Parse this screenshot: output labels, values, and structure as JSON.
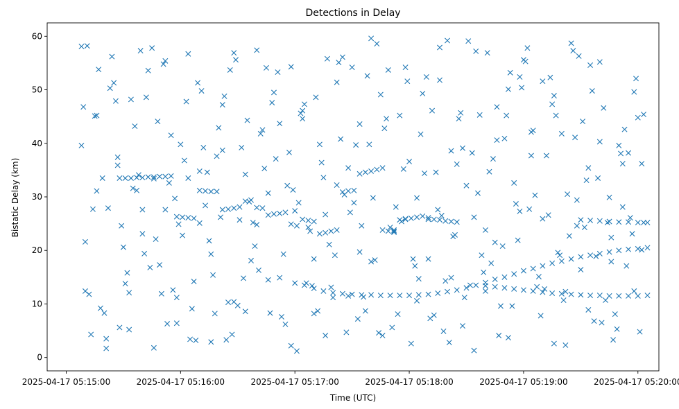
{
  "chart_data": {
    "type": "scatter",
    "title": "Detections in Delay",
    "xlabel": "Time (UTC)",
    "ylabel": "Bistatic Delay (km)",
    "marker": "x",
    "grid": false,
    "legend": "none",
    "color": "#1f77b4",
    "x_ticks": [
      "2025-04-17 05:15:00",
      "2025-04-17 05:16:00",
      "2025-04-17 05:17:00",
      "2025-04-17 05:18:00",
      "2025-04-17 05:19:00",
      "2025-04-17 05:20:00"
    ],
    "y_ticks": [
      0,
      10,
      20,
      30,
      40,
      50,
      60
    ],
    "xlim": [
      "2025-04-17 05:14:50",
      "2025-04-17 05:20:11"
    ],
    "ylim": [
      -2.5,
      62.5
    ],
    "series": [
      {
        "values_note": "(x, y) pairs: x = time HH:MM:SS (UTC), y = bistatic delay (km)",
        "x": [
          "05:15:08",
          "05:15:10",
          "05:15:13",
          "05:15:16",
          "05:15:19",
          "05:15:22",
          "05:15:25",
          "05:15:28",
          "05:15:31",
          "05:15:34",
          "05:15:37",
          "05:15:40",
          "05:15:43",
          "05:15:46",
          "05:15:49",
          "05:15:52",
          "05:15:55",
          "05:15:58",
          "05:16:01",
          "05:16:04",
          "05:16:07",
          "05:16:10",
          "05:16:13",
          "05:16:16",
          "05:16:19",
          "05:16:22",
          "05:16:25",
          "05:16:28",
          "05:16:31",
          "05:16:34",
          "05:16:37",
          "05:16:40",
          "05:16:43",
          "05:16:46",
          "05:16:49",
          "05:16:52",
          "05:16:55",
          "05:16:58",
          "05:17:01",
          "05:17:04",
          "05:17:07",
          "05:17:10",
          "05:17:13",
          "05:17:16",
          "05:17:19",
          "05:17:22",
          "05:17:25",
          "05:17:28",
          "05:17:31",
          "05:17:34",
          "05:17:37",
          "05:17:40",
          "05:17:43",
          "05:17:46",
          "05:17:49",
          "05:17:52",
          "05:17:55",
          "05:17:58",
          "05:18:01",
          "05:18:04",
          "05:18:07",
          "05:18:10",
          "05:18:13",
          "05:18:16",
          "05:18:19",
          "05:18:22",
          "05:18:25",
          "05:18:28",
          "05:18:31",
          "05:18:34",
          "05:18:37",
          "05:18:40",
          "05:18:43",
          "05:18:46",
          "05:18:49",
          "05:18:52",
          "05:18:55",
          "05:18:58",
          "05:19:01",
          "05:19:04",
          "05:19:07",
          "05:19:10",
          "05:19:13",
          "05:19:16",
          "05:19:19",
          "05:19:22",
          "05:19:25",
          "05:19:28",
          "05:19:31",
          "05:19:34",
          "05:19:37",
          "05:19:40",
          "05:19:43",
          "05:19:46",
          "05:19:49",
          "05:19:52",
          "05:19:55",
          "05:19:58",
          "05:20:01",
          "05:20:03",
          "05:15:08",
          "05:15:12",
          "05:15:17",
          "05:15:21",
          "05:15:26",
          "05:15:30",
          "05:15:35",
          "05:15:39",
          "05:15:44",
          "05:15:48",
          "05:15:53",
          "05:15:57",
          "05:16:02",
          "05:16:06",
          "05:16:11",
          "05:16:15",
          "05:16:20",
          "05:16:24",
          "05:16:29",
          "05:16:33",
          "05:16:38",
          "05:16:42",
          "05:16:47",
          "05:16:51",
          "05:16:56",
          "05:17:00",
          "05:17:05",
          "05:17:09",
          "05:17:14",
          "05:17:18",
          "05:17:23",
          "05:17:27",
          "05:17:32",
          "05:17:36",
          "05:17:41",
          "05:17:45",
          "05:17:50",
          "05:17:54",
          "05:17:59",
          "05:18:03",
          "05:18:08",
          "05:18:12",
          "05:18:17",
          "05:18:21",
          "05:18:26",
          "05:18:30",
          "05:18:35",
          "05:18:39",
          "05:18:44",
          "05:18:48",
          "05:18:53",
          "05:18:57",
          "05:19:02",
          "05:19:06",
          "05:19:11",
          "05:19:15",
          "05:19:20",
          "05:19:24",
          "05:19:29",
          "05:19:33",
          "05:19:38",
          "05:19:42",
          "05:19:47",
          "05:19:51",
          "05:19:56",
          "05:20:00",
          "05:15:09",
          "05:15:14",
          "05:15:18",
          "05:15:23",
          "05:15:27",
          "05:15:32",
          "05:15:36",
          "05:15:41",
          "05:15:45",
          "05:15:50",
          "05:15:54",
          "05:15:59",
          "05:16:03",
          "05:16:08",
          "05:16:12",
          "05:16:17",
          "05:16:21",
          "05:16:26",
          "05:16:30",
          "05:16:35",
          "05:16:39",
          "05:16:44",
          "05:16:48",
          "05:16:53",
          "05:16:57",
          "05:17:02",
          "05:17:06",
          "05:17:11",
          "05:17:15",
          "05:17:20",
          "05:17:24",
          "05:17:29",
          "05:17:33",
          "05:17:38",
          "05:17:42",
          "05:17:47",
          "05:17:51",
          "05:17:56",
          "05:18:00",
          "05:18:05",
          "05:18:09",
          "05:18:14",
          "05:18:18",
          "05:18:23",
          "05:18:27",
          "05:18:32",
          "05:18:36",
          "05:18:41",
          "05:18:45",
          "05:18:50",
          "05:18:54",
          "05:18:59",
          "05:19:03",
          "05:19:08",
          "05:19:12",
          "05:19:17",
          "05:19:21",
          "05:19:26",
          "05:19:30",
          "05:19:35",
          "05:19:39",
          "05:19:44",
          "05:19:48",
          "05:19:53",
          "05:19:57",
          "05:20:02",
          "05:15:10",
          "05:15:15",
          "05:15:20",
          "05:15:24",
          "05:15:29",
          "05:15:33",
          "05:15:38",
          "05:15:42",
          "05:15:47",
          "05:15:51",
          "05:15:56",
          "05:16:00",
          "05:16:05",
          "05:16:09",
          "05:16:14",
          "05:16:18",
          "05:16:23",
          "05:16:27",
          "05:16:32",
          "05:16:36",
          "05:16:41",
          "05:16:45",
          "05:16:50",
          "05:16:54",
          "05:16:59",
          "05:17:03",
          "05:17:08",
          "05:17:12",
          "05:17:17",
          "05:17:21",
          "05:17:26",
          "05:17:30",
          "05:17:35",
          "05:17:39",
          "05:17:44",
          "05:17:48",
          "05:17:53",
          "05:17:57",
          "05:18:02",
          "05:18:06",
          "05:18:11",
          "05:18:15",
          "05:18:20",
          "05:18:24",
          "05:18:29",
          "05:18:33",
          "05:18:38",
          "05:18:42",
          "05:18:47",
          "05:18:51",
          "05:18:56",
          "05:19:00",
          "05:19:05",
          "05:19:09",
          "05:19:14",
          "05:19:18",
          "05:19:23",
          "05:19:27",
          "05:19:32",
          "05:19:36",
          "05:19:41",
          "05:19:45",
          "05:19:50",
          "05:19:54",
          "05:19:59",
          "05:20:03",
          "05:15:11",
          "05:15:16",
          "05:15:21",
          "05:15:27",
          "05:15:33",
          "05:15:40",
          "05:15:46",
          "05:15:52",
          "05:15:58",
          "05:16:04",
          "05:16:10",
          "05:16:16",
          "05:16:22",
          "05:16:28",
          "05:16:34",
          "05:16:40",
          "05:16:46",
          "05:16:52",
          "05:16:58",
          "05:17:04",
          "05:17:10",
          "05:17:16",
          "05:17:22",
          "05:17:28",
          "05:17:34",
          "05:17:40",
          "05:17:46",
          "05:17:52",
          "05:17:58",
          "05:18:04",
          "05:18:10",
          "05:18:16",
          "05:18:22",
          "05:18:28",
          "05:18:34",
          "05:18:40",
          "05:18:46",
          "05:18:52",
          "05:18:58",
          "05:19:04",
          "05:19:10",
          "05:19:16",
          "05:19:22",
          "05:19:28",
          "05:19:34",
          "05:19:40",
          "05:19:46",
          "05:19:52",
          "05:19:58",
          "05:20:02",
          "05:17:00",
          "05:17:05",
          "05:17:10",
          "05:17:15",
          "05:17:20",
          "05:17:25",
          "05:17:30",
          "05:17:35",
          "05:17:40",
          "05:17:45",
          "05:17:50",
          "05:17:55",
          "05:18:00",
          "05:18:05",
          "05:18:10",
          "05:18:15",
          "05:18:20",
          "05:18:25",
          "05:18:30",
          "05:18:35",
          "05:18:40",
          "05:18:45",
          "05:18:50",
          "05:18:55",
          "05:19:00",
          "05:19:05",
          "05:19:10",
          "05:19:15",
          "05:19:20",
          "05:19:25",
          "05:19:30",
          "05:19:35",
          "05:19:40",
          "05:19:45",
          "05:19:50",
          "05:19:55",
          "05:20:00",
          "05:20:05",
          "05:18:40",
          "05:18:45",
          "05:18:50",
          "05:18:55",
          "05:19:00",
          "05:19:05",
          "05:19:10",
          "05:19:15",
          "05:19:20",
          "05:19:25",
          "05:19:30",
          "05:19:35",
          "05:19:40",
          "05:19:45",
          "05:19:50",
          "05:19:55",
          "05:20:00",
          "05:20:05",
          "05:19:30",
          "05:19:35",
          "05:19:40",
          "05:19:45",
          "05:19:50",
          "05:19:55",
          "05:20:00",
          "05:20:05",
          "05:15:28",
          "05:15:31",
          "05:15:34",
          "05:15:37",
          "05:15:40",
          "05:15:43",
          "05:15:46",
          "05:15:49",
          "05:15:52",
          "05:15:55",
          "05:15:58",
          "05:16:01",
          "05:16:04",
          "05:16:07",
          "05:16:10",
          "05:16:13",
          "05:16:16",
          "05:16:19",
          "05:16:22",
          "05:16:25",
          "05:16:28",
          "05:16:31",
          "05:16:34",
          "05:16:37",
          "05:16:40",
          "05:16:43",
          "05:16:46",
          "05:16:49",
          "05:16:52",
          "05:16:55",
          "05:16:58",
          "05:17:01",
          "05:17:04",
          "05:17:07",
          "05:17:10",
          "05:17:13",
          "05:17:16",
          "05:17:19",
          "05:17:22",
          "05:17:25",
          "05:17:28",
          "05:17:31",
          "05:17:34",
          "05:17:37",
          "05:17:40",
          "05:17:43",
          "05:17:46",
          "05:17:49",
          "05:17:52",
          "05:17:55",
          "05:17:58",
          "05:18:01",
          "05:18:04",
          "05:18:07",
          "05:18:10",
          "05:18:13",
          "05:18:16",
          "05:18:19",
          "05:18:22",
          "05:18:25"
        ],
        "y": [
          58.1,
          12.4,
          4.3,
          45.2,
          33.5,
          27.9,
          51.3,
          5.6,
          13.8,
          48.2,
          31.2,
          23.1,
          53.6,
          1.8,
          17.3,
          27.6,
          41.5,
          6.4,
          22.8,
          56.7,
          14.2,
          34.8,
          28.4,
          2.9,
          37.6,
          47.2,
          10.3,
          56.9,
          25.7,
          8.6,
          18.1,
          57.4,
          42.5,
          30.7,
          49.5,
          14.9,
          6.2,
          54.3,
          1.2,
          44.6,
          24.3,
          8.2,
          39.8,
          26.7,
          13.1,
          32.2,
          56.1,
          11.5,
          28.9,
          43.6,
          8.7,
          17.9,
          58.6,
          35.4,
          53.7,
          23.8,
          45.2,
          25.8,
          2.6,
          29.8,
          49.3,
          18.4,
          7.9,
          51.8,
          14.3,
          38.6,
          36.1,
          5.9,
          59.1,
          26.2,
          45.3,
          12.4,
          17.6,
          40.6,
          20.8,
          50.1,
          32.6,
          27.3,
          55.3,
          42.1,
          13.2,
          51.6,
          26.6,
          48.9,
          19.1,
          2.3,
          58.7,
          29.4,
          44.1,
          35.4,
          6.8,
          40.3,
          10.7,
          22.4,
          5.3,
          28.1,
          38.2,
          49.6,
          4.8,
          25.2,
          39.6,
          11.8,
          53.8,
          3.5,
          47.9,
          20.6,
          31.6,
          57.3,
          16.8,
          44.1,
          6.3,
          29.7,
          36.8,
          9.1,
          49.8,
          21.8,
          42.9,
          3.3,
          55.6,
          14.8,
          25.2,
          41.8,
          8.3,
          53.3,
          32.1,
          27.4,
          47.3,
          13.4,
          36.4,
          21.1,
          55.1,
          4.7,
          39.7,
          11.3,
          29.8,
          49.1,
          24.3,
          8.1,
          51.6,
          17.1,
          34.4,
          46.1,
          26.5,
          2.8,
          44.6,
          32.1,
          57.2,
          15.9,
          37.1,
          9.6,
          53.2,
          21.9,
          57.8,
          30.3,
          12.8,
          47.3,
          41.8,
          22.7,
          56.3,
          33.1,
          18.9,
          46.6,
          3.3,
          38.1,
          26.1,
          44.8,
          46.8,
          27.7,
          9.2,
          50.3,
          37.4,
          15.8,
          43.2,
          19.4,
          57.8,
          11.9,
          32.6,
          24.9,
          47.8,
          3.2,
          39.2,
          15.4,
          26.2,
          53.7,
          9.7,
          44.3,
          20.8,
          35.3,
          47.6,
          7.6,
          38.3,
          28.9,
          13.9,
          48.6,
          33.6,
          11.2,
          40.8,
          27.1,
          7.2,
          52.6,
          18.2,
          42.8,
          5.6,
          25.4,
          36.6,
          14.7,
          52.4,
          34.6,
          4.9,
          22.6,
          45.7,
          13.5,
          30.7,
          56.9,
          21.5,
          40.9,
          9.6,
          50.4,
          27.7,
          15.1,
          37.7,
          45.2,
          10.7,
          57.3,
          16.4,
          54.6,
          33.5,
          25.2,
          8.1,
          42.6,
          23.1,
          36.2,
          21.6,
          45.1,
          8.3,
          56.2,
          24.6,
          5.2,
          34.1,
          48.6,
          22.1,
          54.8,
          12.6,
          39.8,
          3.4,
          51.3,
          34.6,
          8.2,
          48.8,
          4.3,
          39.2,
          29.1,
          16.3,
          54.1,
          37.1,
          19.3,
          31.3,
          45.6,
          23.6,
          8.7,
          55.8,
          19.1,
          30.4,
          54.2,
          24.6,
          39.8,
          4.6,
          44.6,
          28.1,
          35.2,
          18.4,
          41.7,
          7.3,
          27.6,
          59.2,
          22.9,
          11.2,
          38.2,
          19.1,
          34.7,
          4.1,
          45.2,
          28.7,
          55.6,
          42.4,
          7.8,
          52.3,
          19.6,
          30.5,
          41.1,
          24.3,
          49.8,
          6.5,
          29.9,
          39.6,
          17.1,
          52.1,
          45.4,
          58.2,
          31.1,
          1.7,
          35.9,
          12.1,
          27.6,
          33.4,
          55.4,
          11.2,
          33.5,
          25.1,
          19.3,
          38.7,
          10.4,
          34.2,
          24.8,
          14.5,
          43.7,
          2.2,
          46.1,
          18.4,
          4.1,
          51.4,
          35.4,
          19.7,
          59.6,
          4.1,
          23.6,
          54.2,
          10.6,
          25.8,
          57.9,
          14.9,
          39.1,
          1.3,
          23.8,
          46.8,
          3.7,
          52.4,
          37.7,
          25.9,
          2.6,
          12.3,
          24.6,
          8.9,
          55.2,
          17.9,
          36.2,
          12.4,
          20.1,
          13.9,
          13.5,
          12.9,
          12.4,
          12.1,
          11.9,
          11.8,
          11.7,
          11.7,
          11.6,
          11.6,
          11.6,
          11.6,
          11.7,
          11.8,
          12.0,
          12.3,
          12.6,
          13.0,
          13.5,
          14.0,
          14.6,
          15.0,
          15.6,
          16.2,
          16.6,
          17.1,
          17.6,
          18.0,
          18.4,
          18.8,
          19.1,
          19.4,
          19.7,
          20.0,
          20.2,
          20.3,
          20.5,
          13.4,
          13.2,
          13.0,
          12.8,
          12.6,
          12.4,
          12.2,
          12.0,
          11.9,
          11.8,
          11.7,
          11.6,
          11.6,
          11.5,
          11.5,
          11.5,
          11.5,
          11.6,
          25.7,
          25.6,
          25.5,
          25.4,
          25.3,
          25.3,
          25.2,
          25.2,
          33.5,
          33.5,
          33.5,
          33.6,
          33.6,
          33.7,
          33.7,
          33.8,
          33.8,
          33.9,
          26.3,
          26.2,
          26.1,
          26.0,
          31.2,
          31.1,
          31.0,
          31.0,
          27.6,
          27.7,
          27.9,
          28.1,
          29.2,
          29.4,
          28.0,
          27.9,
          26.6,
          26.8,
          26.9,
          27.1,
          24.9,
          24.6,
          25.8,
          25.6,
          25.4,
          23.1,
          23.3,
          23.6,
          23.8,
          30.9,
          31.1,
          31.2,
          34.3,
          34.6,
          34.8,
          35.1,
          23.8,
          23.6,
          23.4,
          25.7,
          25.9,
          26.0,
          26.2,
          26.4,
          26.1,
          25.8,
          25.7,
          25.5,
          25.4,
          25.3
        ]
      }
    ]
  }
}
